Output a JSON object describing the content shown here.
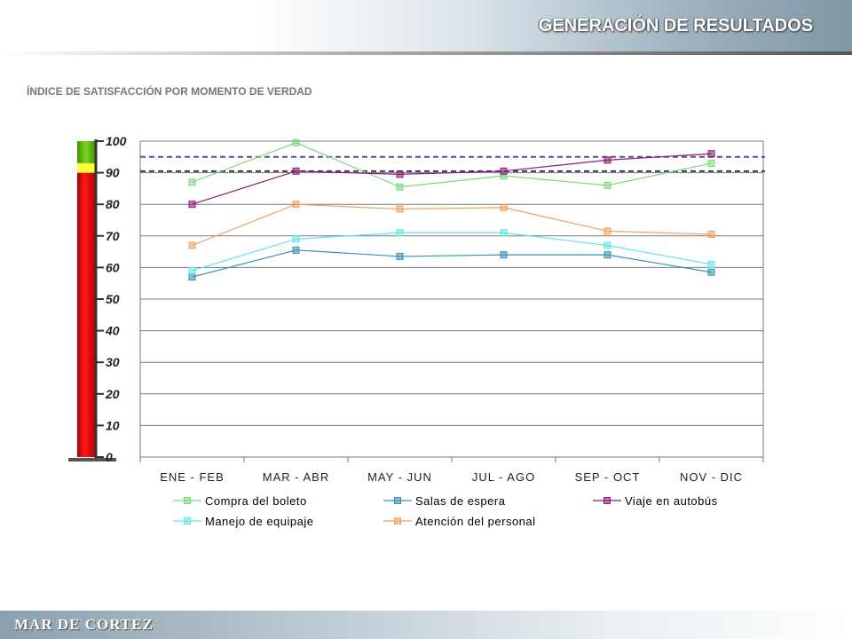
{
  "header": {
    "title": "GENERACIÓN DE RESULTADOS"
  },
  "subtitle": "ÍNDICE DE SATISFACCIÓN POR MOMENTO DE VERDAD",
  "footer": {
    "logo": "MAR DE CORTEZ"
  },
  "chart_data": {
    "type": "line",
    "title": "",
    "xlabel": "",
    "ylabel": "",
    "categories": [
      "ENE - FEB",
      "MAR - ABR",
      "MAY - JUN",
      "JUL - AGO",
      "SEP - OCT",
      "NOV - DIC"
    ],
    "ylim": [
      0,
      100
    ],
    "yticks": [
      "0",
      "10",
      "20",
      "30",
      "40",
      "50",
      "60",
      "70",
      "80",
      "90",
      "100"
    ],
    "grid": true,
    "legend_position": "bottom",
    "series": [
      {
        "name": "Compra del boleto",
        "color": "#7dd87d",
        "values": [
          87,
          99.5,
          85.5,
          89,
          86,
          93
        ]
      },
      {
        "name": "Salas de espera",
        "color": "#3a8fb0",
        "values": [
          57,
          65.5,
          63.5,
          64,
          64,
          58.5
        ]
      },
      {
        "name": "Viaje en autobús",
        "color": "#8b1a7a",
        "values": [
          80,
          90.5,
          89.5,
          90.5,
          94,
          96
        ]
      },
      {
        "name": "Manejo de equipaje",
        "color": "#5fe6e6",
        "values": [
          59,
          69,
          71,
          71,
          67,
          61
        ]
      },
      {
        "name": "Atención del personal",
        "color": "#f0a060",
        "values": [
          67,
          80,
          78.5,
          79,
          71.5,
          70.5
        ]
      }
    ],
    "reference_lines": [
      95,
      90.5
    ],
    "thermometer": {
      "green_from": 93,
      "yellow_from": 90
    }
  }
}
